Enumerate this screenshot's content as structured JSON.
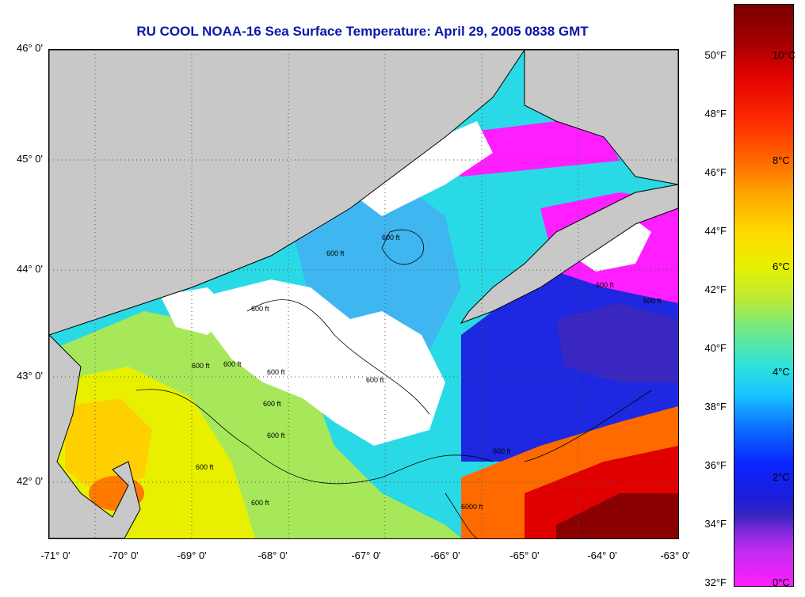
{
  "title": "RU COOL  NOAA-16  Sea Surface Temperature:  April 29, 2005 0838 GMT",
  "map": {
    "lat_labels": [
      "46° 0'",
      "45° 0'",
      "44° 0'",
      "43° 0'",
      "42° 0'"
    ],
    "lon_labels": [
      "-71° 0'",
      "-70° 0'",
      "-69° 0'",
      "-68° 0'",
      "-67° 0'",
      "-66° 0'",
      "-65° 0'",
      "-64° 0'",
      "-63° 0'"
    ],
    "contour_labels": [
      "600 ft",
      "600 ft",
      "600 ft",
      "600 ft",
      "600 ft",
      "600 ft",
      "600 ft",
      "600 ft",
      "600 ft",
      "600 ft",
      "600 ft",
      "600 ft",
      "6000 ft",
      "600 ft",
      "600 ft"
    ],
    "colors": {
      "land": "#c8c8c8",
      "cloud": "#ffffff",
      "coast": "#000000"
    }
  },
  "colorbar": {
    "fahrenheit": [
      "50°F",
      "48°F",
      "46°F",
      "44°F",
      "42°F",
      "40°F",
      "38°F",
      "36°F",
      "34°F",
      "32°F"
    ],
    "celsius": [
      "10°C",
      "8°C",
      "6°C",
      "4°C",
      "2°C",
      "0°C"
    ]
  }
}
